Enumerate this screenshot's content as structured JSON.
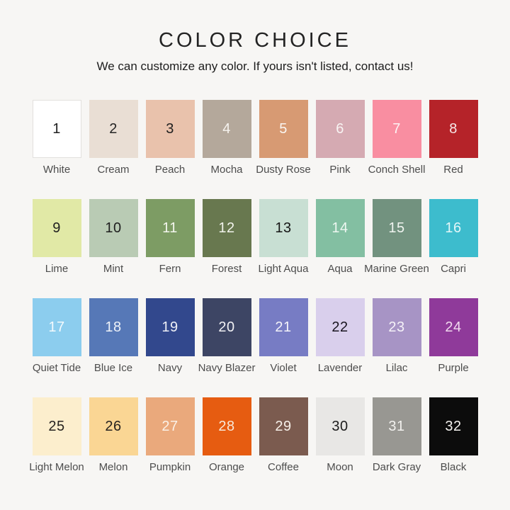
{
  "page": {
    "background": "#f7f6f4",
    "label_color": "#4d4d4d"
  },
  "header": {
    "title": "COLOR CHOICE",
    "subtitle": "We can customize any color. If yours isn't listed, contact us!"
  },
  "swatch_grid": {
    "rows": [
      [
        {
          "number": "1",
          "label": "White",
          "color": "#ffffff",
          "number_color": "#1f1f1f",
          "border": "#e2e0dd"
        },
        {
          "number": "2",
          "label": "Cream",
          "color": "#e9ded4",
          "number_color": "#242424"
        },
        {
          "number": "3",
          "label": "Peach",
          "color": "#e9c2ac",
          "number_color": "#1f1f1f"
        },
        {
          "number": "4",
          "label": "Mocha",
          "color": "#b4a89b",
          "number_color": "#f6f3ef"
        },
        {
          "number": "5",
          "label": "Dusty Rose",
          "color": "#d79a73",
          "number_color": "#faf6f2"
        },
        {
          "number": "6",
          "label": "Pink",
          "color": "#d5aab2",
          "number_color": "#f8f4f3"
        },
        {
          "number": "7",
          "label": "Conch Shell",
          "color": "#f98ea1",
          "number_color": "#fdf3f3"
        },
        {
          "number": "8",
          "label": "Red",
          "color": "#b52329",
          "number_color": "#f6e9e8"
        }
      ],
      [
        {
          "number": "9",
          "label": "Lime",
          "color": "#e1e9a6",
          "number_color": "#202020"
        },
        {
          "number": "10",
          "label": "Mint",
          "color": "#b9cbb4",
          "number_color": "#1f1f1f"
        },
        {
          "number": "11",
          "label": "Fern",
          "color": "#7d9c64",
          "number_color": "#f4f6ee"
        },
        {
          "number": "12",
          "label": "Forest",
          "color": "#68784f",
          "number_color": "#f2f3ec"
        },
        {
          "number": "13",
          "label": "Light Aqua",
          "color": "#c8dfd3",
          "number_color": "#161616"
        },
        {
          "number": "14",
          "label": "Aqua",
          "color": "#83bfa2",
          "number_color": "#eef7f1"
        },
        {
          "number": "15",
          "label": "Marine Green",
          "color": "#72927f",
          "number_color": "#f0f4f0"
        },
        {
          "number": "16",
          "label": "Capri",
          "color": "#3dbccd",
          "number_color": "#e3f6f8"
        }
      ],
      [
        {
          "number": "17",
          "label": "Quiet Tide",
          "color": "#8ccdee",
          "number_color": "#f4fafd"
        },
        {
          "number": "18",
          "label": "Blue Ice",
          "color": "#5678b7",
          "number_color": "#eef2f8"
        },
        {
          "number": "19",
          "label": "Navy",
          "color": "#32488d",
          "number_color": "#eef0f6"
        },
        {
          "number": "20",
          "label": "Navy Blazer",
          "color": "#3d4564",
          "number_color": "#f1f1f4"
        },
        {
          "number": "21",
          "label": "Violet",
          "color": "#777cc4",
          "number_color": "#f3f3f9"
        },
        {
          "number": "22",
          "label": "Lavender",
          "color": "#d9cfec",
          "number_color": "#19151f"
        },
        {
          "number": "23",
          "label": "Lilac",
          "color": "#a794c5",
          "number_color": "#f5f2f8"
        },
        {
          "number": "24",
          "label": "Purple",
          "color": "#8f3a9a",
          "number_color": "#f0d9ee"
        }
      ],
      [
        {
          "number": "25",
          "label": "Light Melon",
          "color": "#fceecd",
          "number_color": "#272320"
        },
        {
          "number": "26",
          "label": "Melon",
          "color": "#fad694",
          "number_color": "#262220"
        },
        {
          "number": "27",
          "label": "Pumpkin",
          "color": "#eaa97c",
          "number_color": "#fbf1e7"
        },
        {
          "number": "28",
          "label": "Orange",
          "color": "#e65c11",
          "number_color": "#f8e8d8"
        },
        {
          "number": "29",
          "label": "Coffee",
          "color": "#7b5b4f",
          "number_color": "#f7f0e9"
        },
        {
          "number": "30",
          "label": "Moon",
          "color": "#e8e7e5",
          "number_color": "#1c1c1c"
        },
        {
          "number": "31",
          "label": "Dark Gray",
          "color": "#989792",
          "number_color": "#f2f1ee"
        },
        {
          "number": "32",
          "label": "Black",
          "color": "#0c0c0c",
          "number_color": "#f4f2ef"
        }
      ]
    ]
  }
}
